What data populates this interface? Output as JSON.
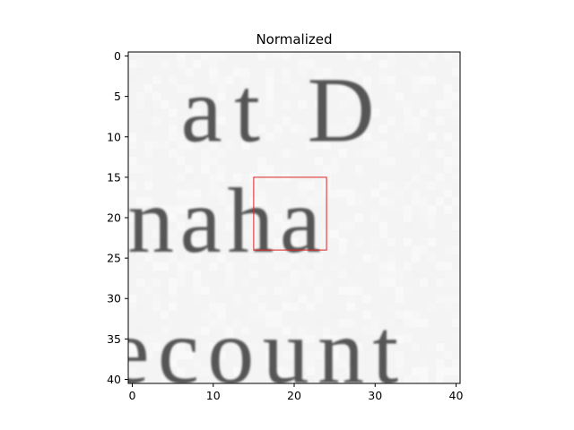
{
  "chart_data": {
    "type": "heatmap",
    "title": "Normalized",
    "xlabel": "",
    "ylabel": "",
    "xlim": [
      -0.5,
      40.5
    ],
    "ylim": [
      40.5,
      -0.5
    ],
    "x_ticks": [
      0,
      10,
      20,
      30,
      40
    ],
    "y_ticks": [
      0,
      5,
      10,
      15,
      20,
      25,
      30,
      35,
      40
    ],
    "colormap": "gray",
    "background_value": 0.96,
    "image_text_lines": [
      {
        "text": "at D",
        "baseline_row": 10.5,
        "start_col": 6
      },
      {
        "text": "naha",
        "baseline_row": 24.2,
        "start_col": -0.6
      },
      {
        "text": "ecount",
        "baseline_row": 40.4,
        "start_col": -3.0
      }
    ],
    "highlight_box": {
      "x0": 15,
      "y0": 15,
      "x1": 24,
      "y1": 24,
      "color": "#dd2222"
    }
  }
}
